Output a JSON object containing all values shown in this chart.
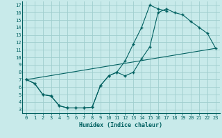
{
  "xlabel": "Humidex (Indice chaleur)",
  "bg_color": "#c8eaea",
  "grid_color": "#a0cece",
  "line_color": "#006060",
  "xlim": [
    -0.5,
    23.5
  ],
  "ylim": [
    2.5,
    17.5
  ],
  "xticks": [
    0,
    1,
    2,
    3,
    4,
    5,
    6,
    7,
    8,
    9,
    10,
    11,
    12,
    13,
    14,
    15,
    16,
    17,
    18,
    19,
    20,
    21,
    22,
    23
  ],
  "yticks": [
    3,
    4,
    5,
    6,
    7,
    8,
    9,
    10,
    11,
    12,
    13,
    14,
    15,
    16,
    17
  ],
  "curve1_x": [
    0,
    1,
    2,
    3,
    4,
    5,
    6,
    7,
    8,
    9,
    10,
    11,
    12,
    13,
    14,
    15,
    16,
    17,
    18,
    19,
    20,
    21,
    22,
    23
  ],
  "curve1_y": [
    7.0,
    6.5,
    5.0,
    4.8,
    3.5,
    3.2,
    3.2,
    3.2,
    3.3,
    6.2,
    7.5,
    8.0,
    7.5,
    8.0,
    9.8,
    11.4,
    16.0,
    16.5,
    16.0,
    15.7,
    14.8,
    14.0,
    13.2,
    11.2
  ],
  "curve2_x": [
    0,
    1,
    2,
    3,
    4,
    5,
    6,
    7,
    8,
    9,
    10,
    11,
    12,
    13,
    14,
    15,
    16,
    17
  ],
  "curve2_y": [
    7.0,
    6.5,
    5.0,
    4.8,
    3.5,
    3.2,
    3.2,
    3.2,
    3.3,
    6.2,
    7.5,
    8.0,
    9.5,
    11.8,
    14.0,
    17.0,
    16.5,
    16.2
  ],
  "curve3_x": [
    0,
    23
  ],
  "curve3_y": [
    7.0,
    11.2
  ],
  "tick_fontsize": 5.0,
  "xlabel_fontsize": 6.0
}
